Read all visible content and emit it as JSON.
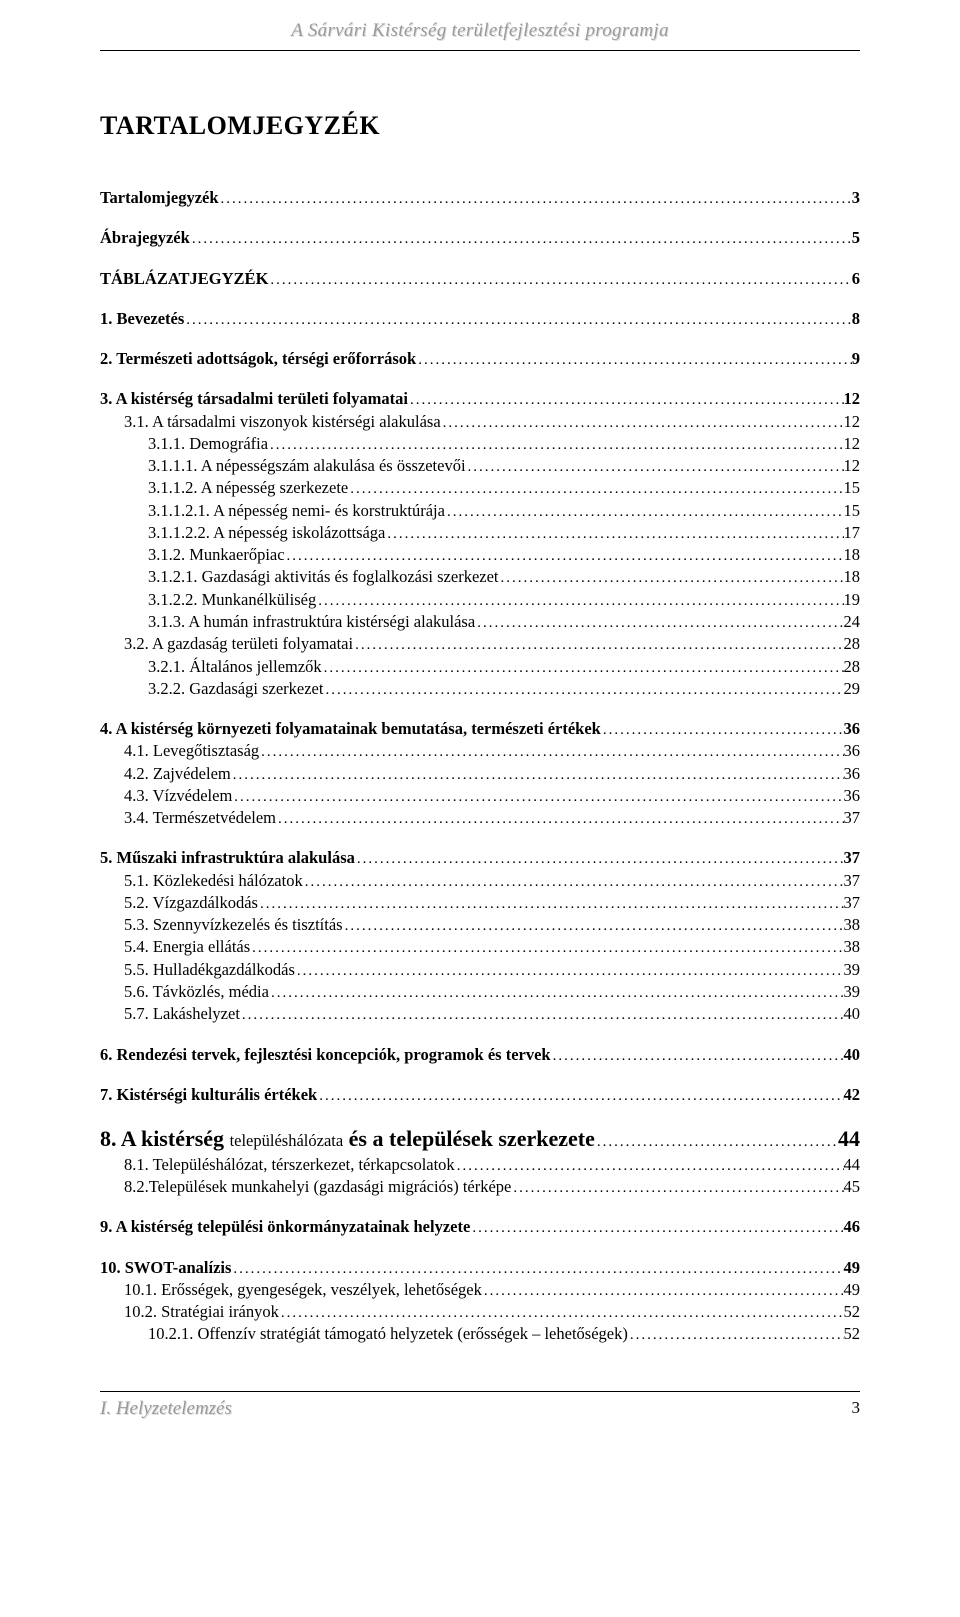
{
  "header": "A Sárvári Kistérség területfejlesztési programja",
  "mainTitle": "TARTALOMJEGYZÉK",
  "footerLeft": "I. Helyzetelemzés",
  "footerRight": "3",
  "toc": [
    {
      "section": [
        {
          "label": "Tartalomjegyzék",
          "page": "3",
          "bold": true
        }
      ]
    },
    {
      "section": [
        {
          "label": "Ábrajegyzék",
          "page": "5",
          "bold": true
        }
      ]
    },
    {
      "section": [
        {
          "label": "TÁBLÁZATJEGYZÉK",
          "page": "6",
          "bold": true
        }
      ]
    },
    {
      "section": [
        {
          "label": "1. Bevezetés",
          "page": "8",
          "bold": true
        }
      ]
    },
    {
      "section": [
        {
          "label": "2. Természeti adottságok, térségi erőforrások",
          "page": "9",
          "bold": true
        }
      ]
    },
    {
      "section": [
        {
          "label": "3. A kistérség társadalmi területi folyamatai",
          "page": "12",
          "bold": true
        },
        {
          "label": "3.1. A társadalmi viszonyok kistérségi alakulása",
          "page": "12",
          "indent": 1
        },
        {
          "label": "3.1.1. Demográfia",
          "page": "12",
          "indent": 2
        },
        {
          "label": "3.1.1.1. A népességszám alakulása és összetevői",
          "page": "12",
          "indent": 2
        },
        {
          "label": "3.1.1.2. A népesség szerkezete",
          "page": "15",
          "indent": 2
        },
        {
          "label": "3.1.1.2.1. A népesség nemi- és korstruktúrája",
          "page": "15",
          "indent": 2
        },
        {
          "label": "3.1.1.2.2. A népesség iskolázottsága",
          "page": "17",
          "indent": 2
        },
        {
          "label": "3.1.2. Munkaerőpiac",
          "page": "18",
          "indent": 2
        },
        {
          "label": "3.1.2.1. Gazdasági aktivitás és foglalkozási szerkezet",
          "page": "18",
          "indent": 2
        },
        {
          "label": "3.1.2.2. Munkanélküliség",
          "page": "19",
          "indent": 2
        },
        {
          "label": "3.1.3. A humán infrastruktúra kistérségi alakulása",
          "page": "24",
          "indent": 2
        },
        {
          "label": "3.2. A gazdaság területi folyamatai",
          "page": "28",
          "indent": 1
        },
        {
          "label": "3.2.1. Általános jellemzők",
          "page": "28",
          "indent": 2
        },
        {
          "label": "3.2.2. Gazdasági szerkezet",
          "page": "29",
          "indent": 2
        }
      ]
    },
    {
      "section": [
        {
          "label": "4. A kistérség környezeti folyamatainak bemutatása, természeti értékek",
          "page": "36",
          "bold": true
        },
        {
          "label": "4.1. Levegőtisztaság",
          "page": "36",
          "indent": 1
        },
        {
          "label": "4.2. Zajvédelem",
          "page": "36",
          "indent": 1
        },
        {
          "label": "4.3. Vízvédelem",
          "page": "36",
          "indent": 1
        },
        {
          "label": "3.4. Természetvédelem",
          "page": "37",
          "indent": 1
        }
      ]
    },
    {
      "section": [
        {
          "label": "5. Műszaki infrastruktúra alakulása",
          "page": "37",
          "bold": true
        },
        {
          "label": "5.1. Közlekedési hálózatok",
          "page": "37",
          "indent": 1
        },
        {
          "label": "5.2. Vízgazdálkodás",
          "page": "37",
          "indent": 1
        },
        {
          "label": "5.3. Szennyvízkezelés és tisztítás",
          "page": "38",
          "indent": 1
        },
        {
          "label": "5.4. Energia ellátás",
          "page": "38",
          "indent": 1
        },
        {
          "label": "5.5. Hulladékgazdálkodás",
          "page": "39",
          "indent": 1
        },
        {
          "label": "5.6. Távközlés, média",
          "page": "39",
          "indent": 1
        },
        {
          "label": "5.7. Lakáshelyzet",
          "page": "40",
          "indent": 1
        }
      ]
    },
    {
      "section": [
        {
          "label": "6. Rendezési tervek, fejlesztési koncepciók, programok és tervek",
          "page": "40",
          "bold": true
        }
      ]
    },
    {
      "section": [
        {
          "label": "7. Kistérségi kulturális értékek",
          "page": "42",
          "bold": true
        }
      ]
    },
    {
      "section": [
        {
          "label": "8. A kistérség <span class=\"sub\">településhálózata</span> és a települések szerkezete",
          "page": "44",
          "large": true,
          "html": true
        },
        {
          "label": "8.1. Településhálózat, térszerkezet, térkapcsolatok",
          "page": "44",
          "indent": 1
        },
        {
          "label": "8.2.Települések munkahelyi (gazdasági migrációs) térképe",
          "page": "45",
          "indent": 1
        }
      ]
    },
    {
      "section": [
        {
          "label": "9. A kistérség települési önkormányzatainak helyzete",
          "page": "46",
          "bold": true
        }
      ]
    },
    {
      "section": [
        {
          "label": "10. SWOT-analízis",
          "page": "49",
          "bold": true
        },
        {
          "label": "10.1. Erősségek, gyengeségek, veszélyek, lehetőségek",
          "page": "49",
          "indent": 1
        },
        {
          "label": "10.2. Stratégiai irányok",
          "page": "52",
          "indent": 1
        },
        {
          "label": "10.2.1. Offenzív stratégiát támogató helyzetek (erősségek – lehetőségek)",
          "page": "52",
          "indent": 2
        }
      ]
    }
  ]
}
